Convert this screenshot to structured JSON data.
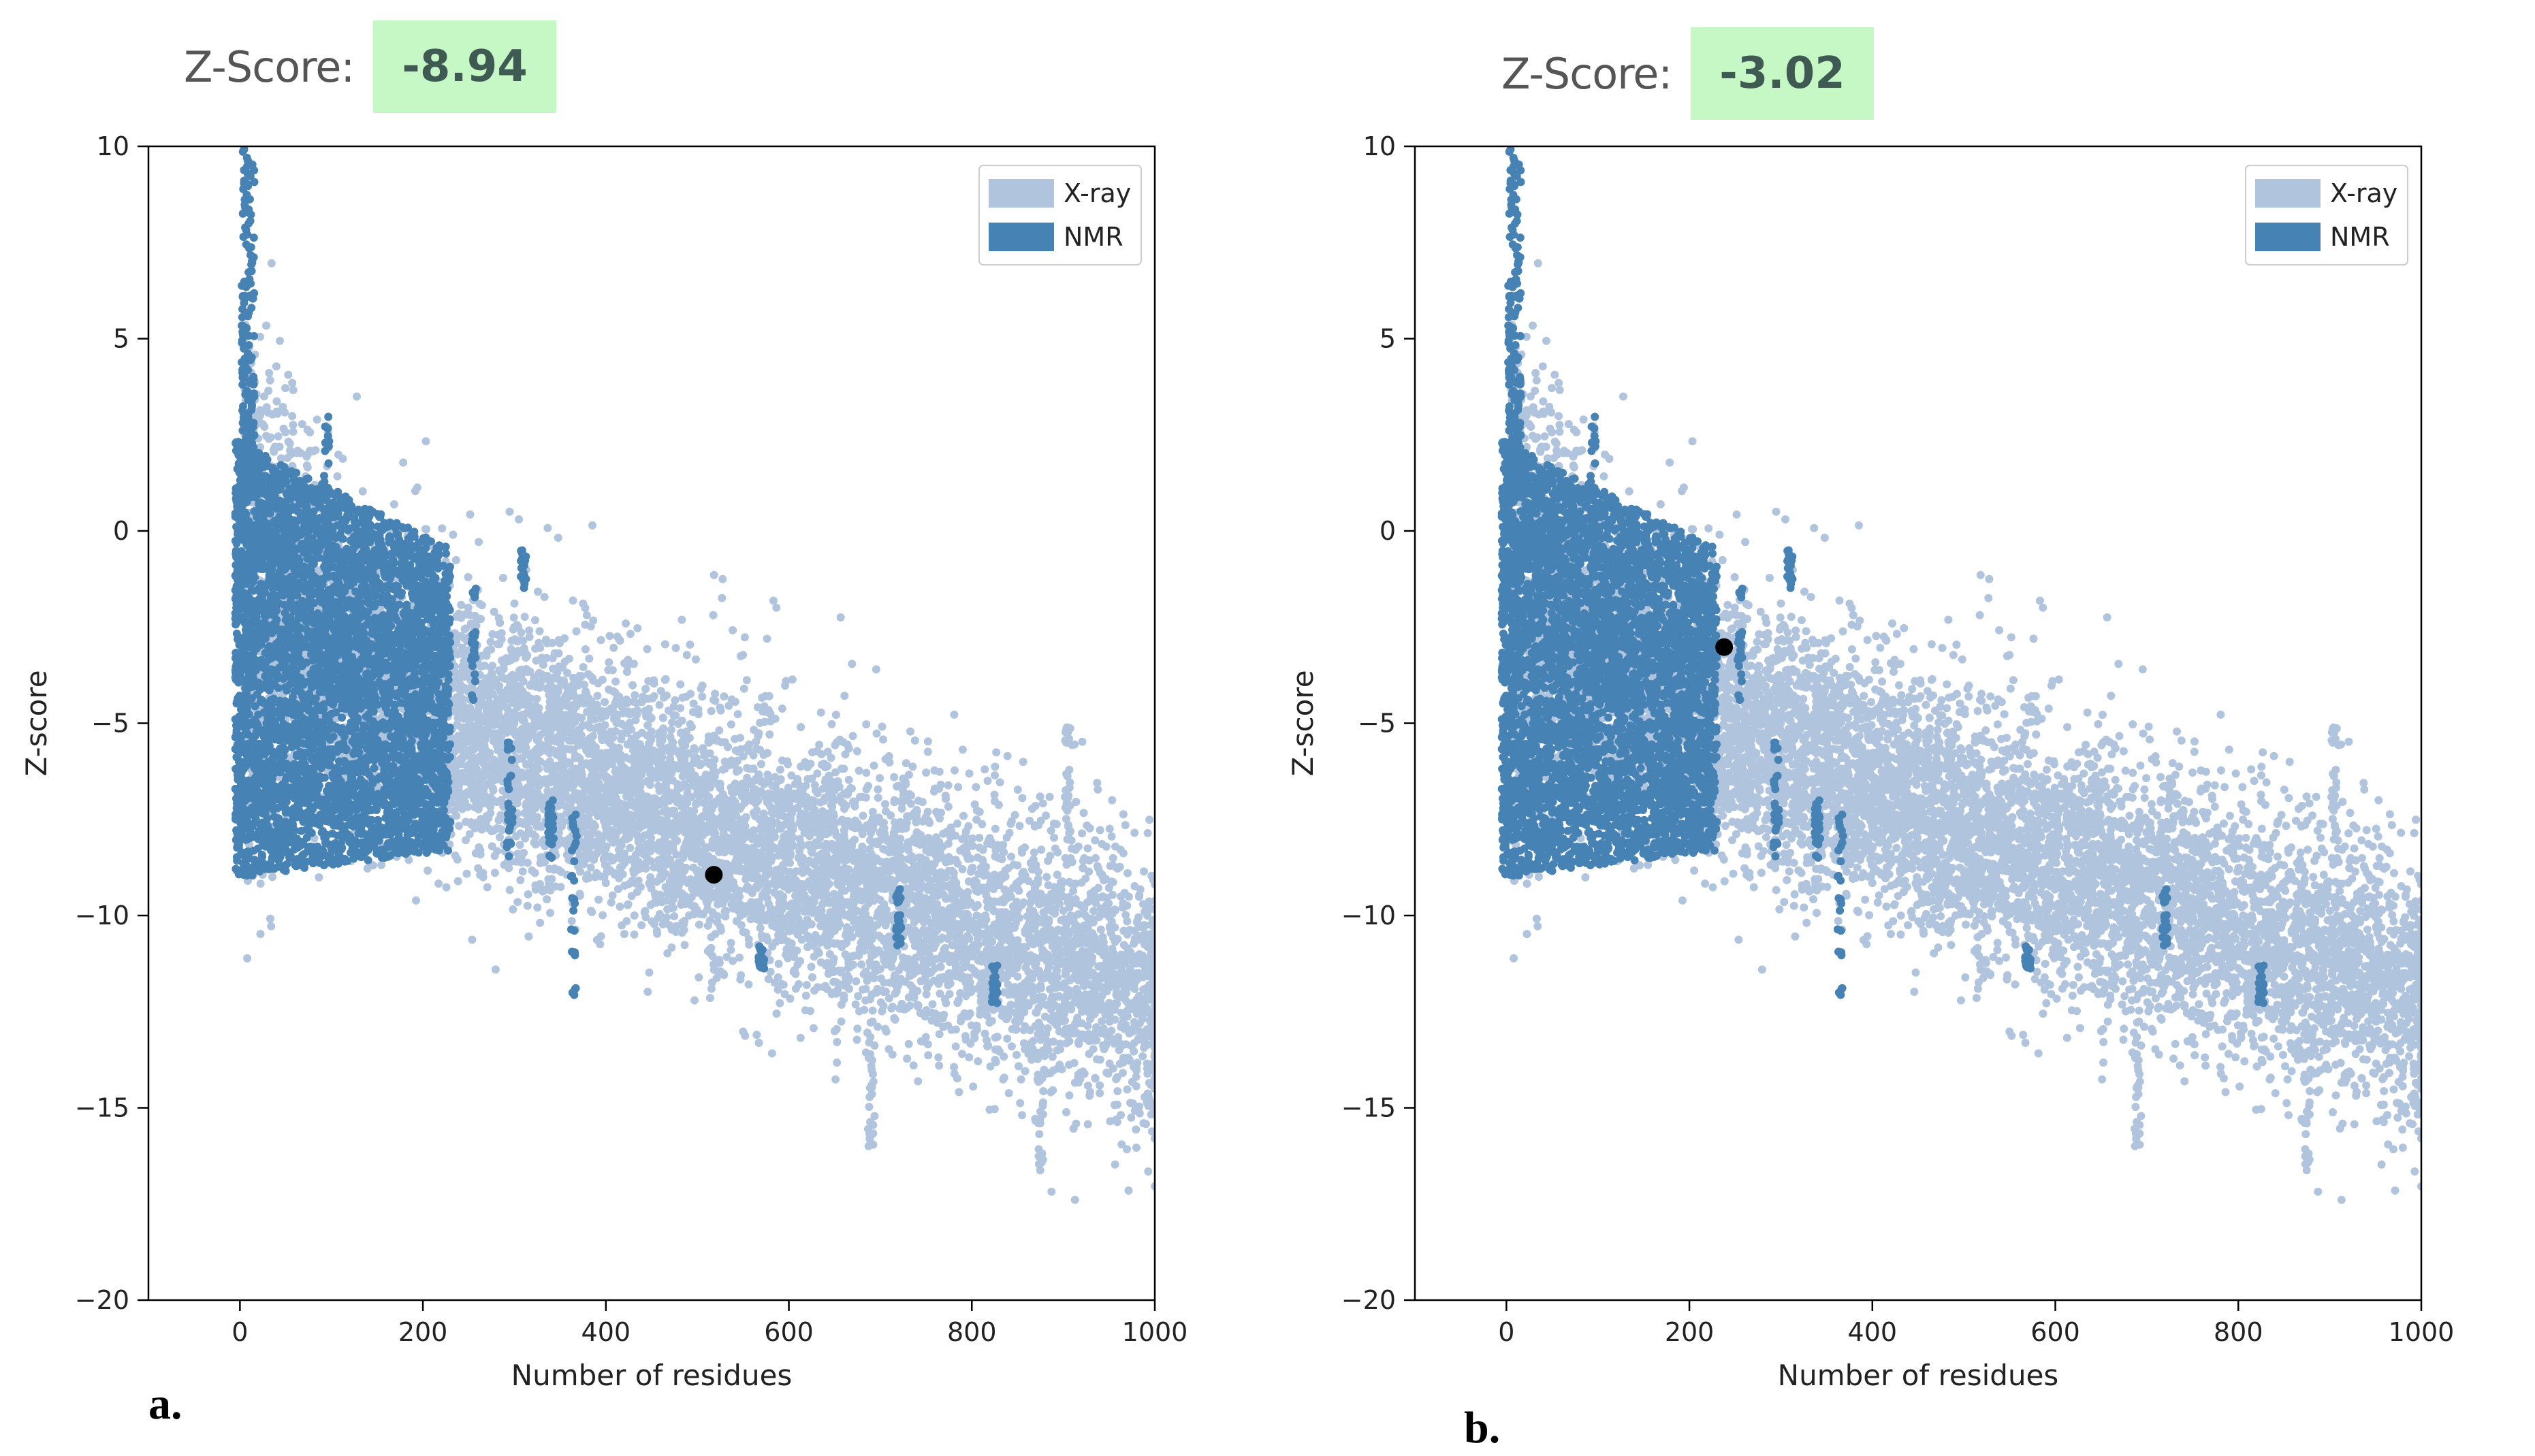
{
  "panels": [
    {
      "letter": "a.",
      "zscore_label": "Z-Score:",
      "zscore_value": "-8.94",
      "colors": {
        "xray": "#b0c4de",
        "nmr": "#4682b4",
        "point": "#000000",
        "badge": "#c6f8c6"
      }
    },
    {
      "letter": "b.",
      "zscore_label": "Z-Score:",
      "zscore_value": "-3.02",
      "colors": {
        "xray": "#b0c4de",
        "nmr": "#4682b4",
        "point": "#000000",
        "badge": "#c6f8c6"
      }
    }
  ],
  "chart_data": [
    {
      "type": "scatter",
      "title": "",
      "xlabel": "Number of residues",
      "ylabel": "Z-score",
      "xlim": [
        -100,
        1000
      ],
      "ylim": [
        -20,
        10
      ],
      "xticks": [
        "0",
        "200",
        "400",
        "600",
        "800",
        "1000"
      ],
      "yticks": [
        "10",
        "5",
        "0",
        "−5",
        "−10",
        "−15",
        "−20"
      ],
      "legend": {
        "placement": "top-right",
        "entries": [
          "X-ray",
          "NMR"
        ]
      },
      "series": [
        {
          "name": "X-ray",
          "description": "dense point cloud, roughly -1.0 at ~20 residues declining to about -12 at ~1000 residues"
        },
        {
          "name": "NMR",
          "description": "dense cluster at 0-230 residues, Z-score about +2 to -9, with outliers up to +10"
        }
      ],
      "highlight": {
        "x": 518,
        "y": -8.94
      }
    },
    {
      "type": "scatter",
      "title": "",
      "xlabel": "Number of residues",
      "ylabel": "Z-score",
      "xlim": [
        -100,
        1000
      ],
      "ylim": [
        -20,
        10
      ],
      "xticks": [
        "0",
        "200",
        "400",
        "600",
        "800",
        "1000"
      ],
      "yticks": [
        "10",
        "5",
        "0",
        "−5",
        "−10",
        "−15",
        "−20"
      ],
      "legend": {
        "placement": "top-right",
        "entries": [
          "X-ray",
          "NMR"
        ]
      },
      "series": [
        {
          "name": "X-ray",
          "description": "dense point cloud, roughly -1.0 at ~20 residues declining to about -12 at ~1000 residues"
        },
        {
          "name": "NMR",
          "description": "dense cluster at 0-230 residues, Z-score about +2 to -9, with outliers up to +10"
        }
      ],
      "highlight": {
        "x": 238,
        "y": -3.02
      }
    }
  ]
}
